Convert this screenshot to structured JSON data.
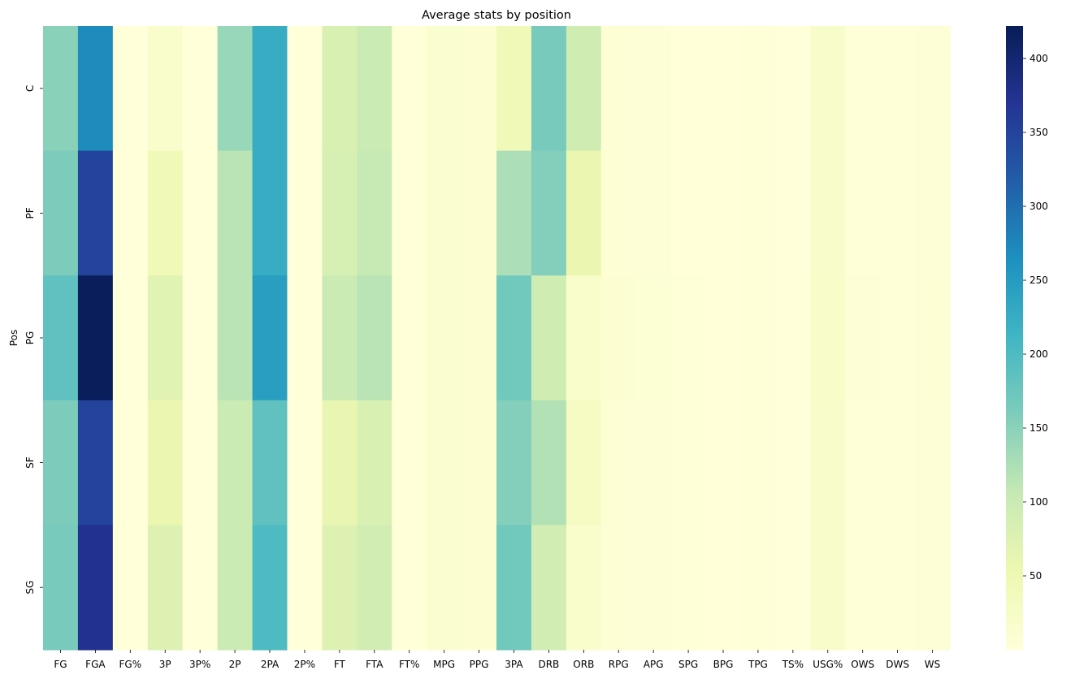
{
  "chart_data": {
    "type": "heatmap",
    "title": "Average stats by position",
    "xlabel": "",
    "ylabel": "Pos",
    "x_categories": [
      "FG",
      "FGA",
      "FG%",
      "3P",
      "3P%",
      "2P",
      "2PA",
      "2P%",
      "FT",
      "FTA",
      "FT%",
      "MPG",
      "PPG",
      "3PA",
      "DRB",
      "ORB",
      "RPG",
      "APG",
      "SPG",
      "BPG",
      "TPG",
      "TS%",
      "USG%",
      "OWS",
      "DWS",
      "WS"
    ],
    "y_categories": [
      "C",
      "PF",
      "PG",
      "SF",
      "SG"
    ],
    "values": [
      [
        150,
        270,
        0.5,
        18,
        0.2,
        140,
        225,
        0.5,
        80,
        100,
        0.7,
        15,
        9,
        45,
        165,
        95,
        7,
        4,
        1,
        1,
        2,
        0.6,
        20,
        3,
        3,
        5
      ],
      [
        160,
        350,
        0.5,
        45,
        0.3,
        115,
        225,
        0.5,
        85,
        105,
        0.7,
        15,
        9,
        125,
        155,
        55,
        7,
        4,
        1,
        1,
        2,
        0.6,
        20,
        3,
        3,
        5
      ],
      [
        185,
        420,
        0.5,
        70,
        0.3,
        115,
        245,
        0.5,
        100,
        115,
        0.8,
        15,
        9,
        170,
        95,
        18,
        10,
        8,
        2,
        1,
        3,
        0.6,
        22,
        4,
        3,
        7
      ],
      [
        160,
        350,
        0.5,
        55,
        0.3,
        100,
        185,
        0.5,
        60,
        80,
        0.8,
        15,
        9,
        155,
        120,
        30,
        7,
        5,
        2,
        1,
        2,
        0.6,
        20,
        3,
        3,
        5
      ],
      [
        165,
        375,
        0.5,
        75,
        0.3,
        100,
        200,
        0.5,
        75,
        90,
        0.8,
        15,
        9,
        170,
        90,
        18,
        7,
        5,
        2,
        1,
        2,
        0.6,
        20,
        3,
        3,
        5
      ]
    ],
    "colorbar": {
      "range": [
        0,
        422
      ],
      "ticks": [
        50,
        100,
        150,
        200,
        250,
        300,
        350,
        400
      ],
      "colormap": "YlGnBu"
    },
    "grid": false
  }
}
